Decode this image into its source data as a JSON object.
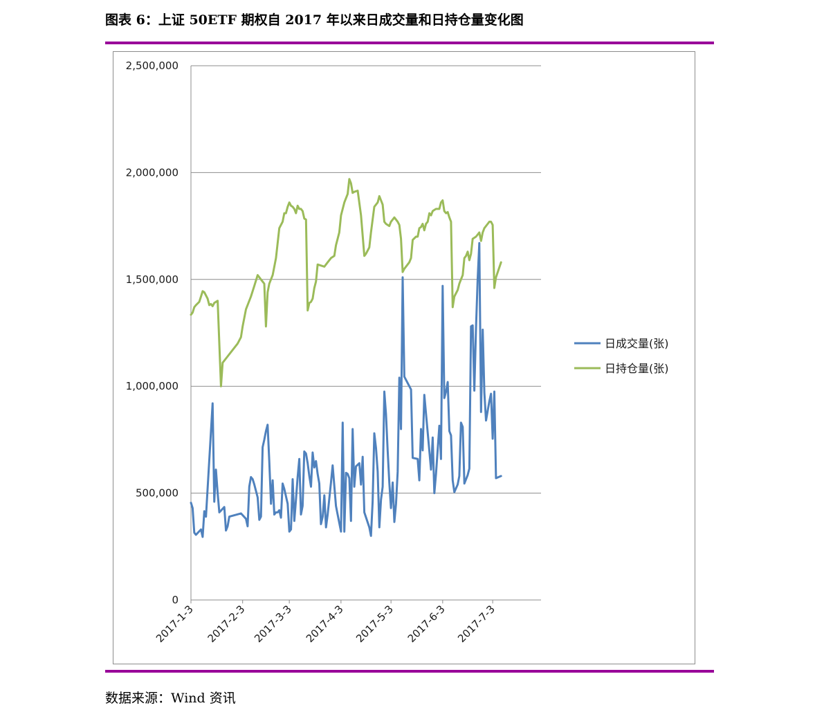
{
  "header": {
    "title": "图表 6：上证 50ETF 期权自 2017 年以来日成交量和日持仓量变化图"
  },
  "footer": {
    "source": "数据来源：Wind 资讯"
  },
  "chart_data": {
    "type": "line",
    "title": "",
    "xlabel": "",
    "ylabel": "",
    "ylim": [
      0,
      2500000
    ],
    "y_ticks": [
      0,
      500000,
      1000000,
      1500000,
      2000000,
      2500000
    ],
    "y_tick_labels": [
      "0",
      "500,000",
      "1,000,000",
      "1,500,000",
      "2,000,000",
      "2,500,000"
    ],
    "x_tick_labels": [
      "2017-1-3",
      "2017-2-3",
      "2017-3-3",
      "2017-4-3",
      "2017-5-3",
      "2017-6-3",
      "2017-7-3"
    ],
    "x_tick_positions": [
      0,
      31,
      59,
      90,
      120,
      151,
      181
    ],
    "xlim": [
      0,
      210
    ],
    "grid": "horizontal",
    "legend_position": "right",
    "series": [
      {
        "name": "日成交量(张)",
        "color": "#4f81bd",
        "points": [
          [
            0,
            455000
          ],
          [
            1,
            430000
          ],
          [
            2,
            315000
          ],
          [
            3,
            305000
          ],
          [
            6,
            330000
          ],
          [
            7,
            295000
          ],
          [
            8,
            415000
          ],
          [
            9,
            390000
          ],
          [
            13,
            920000
          ],
          [
            14,
            460000
          ],
          [
            15,
            610000
          ],
          [
            16,
            500000
          ],
          [
            17,
            410000
          ],
          [
            20,
            435000
          ],
          [
            21,
            325000
          ],
          [
            22,
            345000
          ],
          [
            23,
            390000
          ],
          [
            30,
            405000
          ],
          [
            33,
            380000
          ],
          [
            34,
            345000
          ],
          [
            35,
            530000
          ],
          [
            36,
            575000
          ],
          [
            37,
            565000
          ],
          [
            38,
            540000
          ],
          [
            40,
            480000
          ],
          [
            41,
            375000
          ],
          [
            42,
            390000
          ],
          [
            43,
            715000
          ],
          [
            44,
            750000
          ],
          [
            45,
            790000
          ],
          [
            46,
            820000
          ],
          [
            47,
            650000
          ],
          [
            48,
            450000
          ],
          [
            49,
            560000
          ],
          [
            50,
            400000
          ],
          [
            51,
            410000
          ],
          [
            52,
            410000
          ],
          [
            53,
            420000
          ],
          [
            54,
            385000
          ],
          [
            55,
            545000
          ],
          [
            56,
            520000
          ],
          [
            58,
            450000
          ],
          [
            59,
            320000
          ],
          [
            60,
            330000
          ],
          [
            61,
            565000
          ],
          [
            62,
            370000
          ],
          [
            63,
            470000
          ],
          [
            64,
            575000
          ],
          [
            65,
            660000
          ],
          [
            66,
            400000
          ],
          [
            67,
            440000
          ],
          [
            68,
            695000
          ],
          [
            69,
            685000
          ],
          [
            70,
            640000
          ],
          [
            71,
            580000
          ],
          [
            72,
            530000
          ],
          [
            73,
            690000
          ],
          [
            74,
            620000
          ],
          [
            75,
            650000
          ],
          [
            76,
            590000
          ],
          [
            77,
            545000
          ],
          [
            78,
            355000
          ],
          [
            79,
            390000
          ],
          [
            80,
            490000
          ],
          [
            81,
            340000
          ],
          [
            82,
            400000
          ],
          [
            84,
            550000
          ],
          [
            85,
            630000
          ],
          [
            87,
            440000
          ],
          [
            88,
            400000
          ],
          [
            90,
            320000
          ],
          [
            91,
            830000
          ],
          [
            92,
            320000
          ],
          [
            93,
            595000
          ],
          [
            94,
            590000
          ],
          [
            95,
            570000
          ],
          [
            96,
            370000
          ],
          [
            97,
            800000
          ],
          [
            98,
            530000
          ],
          [
            99,
            625000
          ],
          [
            101,
            640000
          ],
          [
            102,
            540000
          ],
          [
            103,
            670000
          ],
          [
            104,
            410000
          ],
          [
            107,
            340000
          ],
          [
            108,
            300000
          ],
          [
            109,
            460000
          ],
          [
            110,
            780000
          ],
          [
            111,
            710000
          ],
          [
            112,
            600000
          ],
          [
            113,
            340000
          ],
          [
            114,
            470000
          ],
          [
            115,
            530000
          ],
          [
            116,
            975000
          ],
          [
            117,
            870000
          ],
          [
            118,
            700000
          ],
          [
            119,
            550000
          ],
          [
            120,
            430000
          ],
          [
            121,
            550000
          ],
          [
            122,
            365000
          ],
          [
            123,
            450000
          ],
          [
            124,
            600000
          ],
          [
            125,
            1040000
          ],
          [
            126,
            800000
          ],
          [
            127,
            1510000
          ],
          [
            128,
            1045000
          ],
          [
            132,
            985000
          ],
          [
            133,
            665000
          ],
          [
            136,
            660000
          ],
          [
            137,
            560000
          ],
          [
            138,
            800000
          ],
          [
            139,
            700000
          ],
          [
            140,
            960000
          ],
          [
            144,
            610000
          ],
          [
            145,
            760000
          ],
          [
            146,
            500000
          ],
          [
            147,
            590000
          ],
          [
            149,
            815000
          ],
          [
            150,
            660000
          ],
          [
            151,
            1470000
          ],
          [
            152,
            945000
          ],
          [
            153,
            975000
          ],
          [
            154,
            1020000
          ],
          [
            155,
            790000
          ],
          [
            156,
            770000
          ],
          [
            157,
            560000
          ],
          [
            158,
            505000
          ],
          [
            160,
            540000
          ],
          [
            161,
            580000
          ],
          [
            162,
            830000
          ],
          [
            163,
            810000
          ],
          [
            164,
            545000
          ],
          [
            166,
            585000
          ],
          [
            167,
            615000
          ],
          [
            168,
            1280000
          ],
          [
            169,
            1285000
          ],
          [
            170,
            980000
          ],
          [
            171,
            1270000
          ],
          [
            172,
            1500000
          ],
          [
            173,
            1670000
          ],
          [
            174,
            880000
          ],
          [
            175,
            1265000
          ],
          [
            176,
            970000
          ],
          [
            177,
            840000
          ],
          [
            179,
            930000
          ],
          [
            180,
            965000
          ],
          [
            181,
            755000
          ],
          [
            182,
            975000
          ],
          [
            183,
            570000
          ],
          [
            186,
            580000
          ]
        ]
      },
      {
        "name": "日持仓量(张)",
        "color": "#9bbb59",
        "points": [
          [
            0,
            1335000
          ],
          [
            1,
            1345000
          ],
          [
            2,
            1370000
          ],
          [
            3,
            1380000
          ],
          [
            5,
            1395000
          ],
          [
            6,
            1420000
          ],
          [
            7,
            1445000
          ],
          [
            8,
            1440000
          ],
          [
            10,
            1410000
          ],
          [
            11,
            1380000
          ],
          [
            12,
            1385000
          ],
          [
            13,
            1375000
          ],
          [
            14,
            1390000
          ],
          [
            15,
            1395000
          ],
          [
            16,
            1400000
          ],
          [
            18,
            1000000
          ],
          [
            19,
            1110000
          ],
          [
            22,
            1140000
          ],
          [
            28,
            1200000
          ],
          [
            30,
            1230000
          ],
          [
            31,
            1280000
          ],
          [
            33,
            1360000
          ],
          [
            36,
            1420000
          ],
          [
            38,
            1470000
          ],
          [
            40,
            1520000
          ],
          [
            41,
            1510000
          ],
          [
            43,
            1490000
          ],
          [
            44,
            1480000
          ],
          [
            45,
            1280000
          ],
          [
            46,
            1440000
          ],
          [
            47,
            1480000
          ],
          [
            49,
            1520000
          ],
          [
            51,
            1600000
          ],
          [
            53,
            1740000
          ],
          [
            55,
            1770000
          ],
          [
            56,
            1810000
          ],
          [
            57,
            1810000
          ],
          [
            58,
            1840000
          ],
          [
            59,
            1860000
          ],
          [
            60,
            1845000
          ],
          [
            61,
            1840000
          ],
          [
            62,
            1830000
          ],
          [
            63,
            1810000
          ],
          [
            64,
            1845000
          ],
          [
            65,
            1830000
          ],
          [
            66,
            1830000
          ],
          [
            67,
            1820000
          ],
          [
            68,
            1785000
          ],
          [
            69,
            1780000
          ],
          [
            70,
            1355000
          ],
          [
            71,
            1390000
          ],
          [
            72,
            1395000
          ],
          [
            73,
            1410000
          ],
          [
            74,
            1460000
          ],
          [
            75,
            1490000
          ],
          [
            76,
            1570000
          ],
          [
            80,
            1560000
          ],
          [
            82,
            1580000
          ],
          [
            84,
            1600000
          ],
          [
            86,
            1610000
          ],
          [
            87,
            1660000
          ],
          [
            89,
            1720000
          ],
          [
            90,
            1800000
          ],
          [
            92,
            1860000
          ],
          [
            94,
            1900000
          ],
          [
            95,
            1970000
          ],
          [
            96,
            1950000
          ],
          [
            97,
            1905000
          ],
          [
            98,
            1910000
          ],
          [
            100,
            1915000
          ],
          [
            102,
            1800000
          ],
          [
            104,
            1610000
          ],
          [
            105,
            1620000
          ],
          [
            107,
            1650000
          ],
          [
            108,
            1720000
          ],
          [
            109,
            1780000
          ],
          [
            110,
            1840000
          ],
          [
            112,
            1860000
          ],
          [
            113,
            1890000
          ],
          [
            114,
            1870000
          ],
          [
            115,
            1850000
          ],
          [
            116,
            1770000
          ],
          [
            117,
            1760000
          ],
          [
            119,
            1750000
          ],
          [
            120,
            1770000
          ],
          [
            121,
            1780000
          ],
          [
            122,
            1790000
          ],
          [
            124,
            1770000
          ],
          [
            125,
            1755000
          ],
          [
            126,
            1690000
          ],
          [
            127,
            1535000
          ],
          [
            128,
            1550000
          ],
          [
            131,
            1580000
          ],
          [
            132,
            1600000
          ],
          [
            133,
            1685000
          ],
          [
            135,
            1700000
          ],
          [
            136,
            1700000
          ],
          [
            137,
            1740000
          ],
          [
            138,
            1745000
          ],
          [
            139,
            1760000
          ],
          [
            140,
            1730000
          ],
          [
            141,
            1760000
          ],
          [
            142,
            1770000
          ],
          [
            143,
            1810000
          ],
          [
            144,
            1800000
          ],
          [
            145,
            1820000
          ],
          [
            146,
            1825000
          ],
          [
            147,
            1830000
          ],
          [
            149,
            1830000
          ],
          [
            150,
            1860000
          ],
          [
            151,
            1870000
          ],
          [
            152,
            1820000
          ],
          [
            153,
            1810000
          ],
          [
            154,
            1815000
          ],
          [
            155,
            1790000
          ],
          [
            156,
            1770000
          ],
          [
            157,
            1370000
          ],
          [
            158,
            1420000
          ],
          [
            160,
            1450000
          ],
          [
            161,
            1480000
          ],
          [
            162,
            1500000
          ],
          [
            163,
            1520000
          ],
          [
            164,
            1600000
          ],
          [
            165,
            1610000
          ],
          [
            166,
            1630000
          ],
          [
            167,
            1590000
          ],
          [
            168,
            1620000
          ],
          [
            169,
            1690000
          ],
          [
            171,
            1700000
          ],
          [
            172,
            1710000
          ],
          [
            173,
            1720000
          ],
          [
            174,
            1680000
          ],
          [
            175,
            1720000
          ],
          [
            176,
            1740000
          ],
          [
            178,
            1760000
          ],
          [
            179,
            1770000
          ],
          [
            180,
            1770000
          ],
          [
            181,
            1755000
          ],
          [
            182,
            1460000
          ],
          [
            183,
            1510000
          ],
          [
            186,
            1580000
          ]
        ]
      }
    ]
  }
}
